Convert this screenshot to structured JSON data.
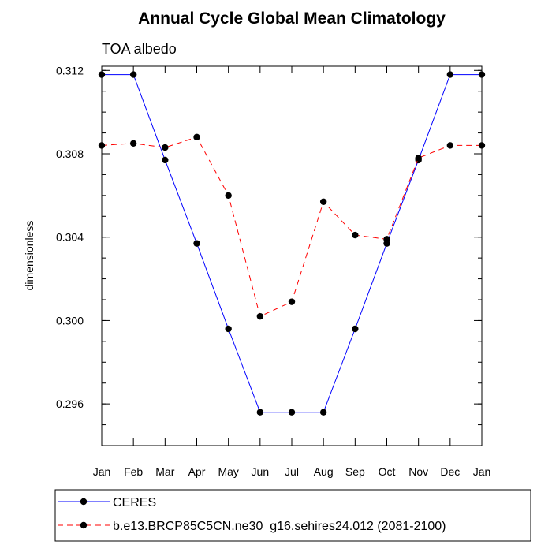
{
  "chart_data": {
    "type": "line",
    "title": "Annual Cycle Global Mean Climatology",
    "subtitle": "TOA albedo",
    "xlabel": "",
    "ylabel": "dimensionless",
    "categories": [
      "Jan",
      "Feb",
      "Mar",
      "Apr",
      "May",
      "Jun",
      "Jul",
      "Aug",
      "Sep",
      "Oct",
      "Nov",
      "Dec",
      "Jan"
    ],
    "ylim": [
      0.294,
      0.3122
    ],
    "yticks": [
      0.296,
      0.3,
      0.304,
      0.308,
      0.312
    ],
    "ytick_labels": [
      "0.296",
      "0.300",
      "0.304",
      "0.308",
      "0.312"
    ],
    "grid": false,
    "legend_position": "bottom",
    "series": [
      {
        "name": "CERES",
        "color": "#0000ff",
        "dash": "solid",
        "values": [
          0.3118,
          0.3118,
          0.3077,
          0.3037,
          0.2996,
          0.2956,
          0.2956,
          0.2956,
          0.2996,
          0.3037,
          0.3077,
          0.3118,
          0.3118
        ]
      },
      {
        "name": "b.e13.BRCP85C5CN.ne30_g16.sehires24.012 (2081-2100)",
        "color": "#ff0000",
        "dash": "dashed",
        "values": [
          0.3084,
          0.3085,
          0.3083,
          0.3088,
          0.306,
          0.3002,
          0.3009,
          0.3057,
          0.3041,
          0.3039,
          0.3078,
          0.3084,
          0.3084
        ]
      }
    ]
  }
}
